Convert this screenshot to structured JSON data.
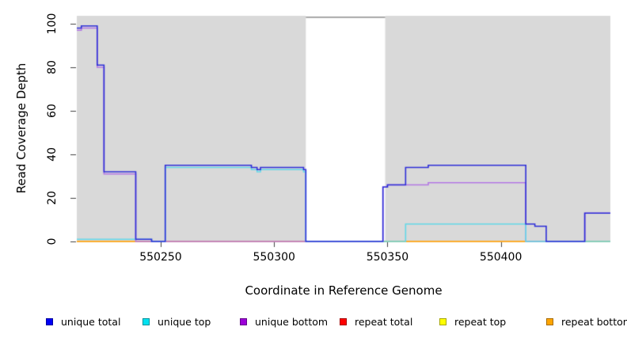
{
  "chart_data": {
    "type": "line",
    "subtype": "step-coverage-plot",
    "title": "",
    "xlabel": "Coordinate in Reference Genome",
    "ylabel": "Read Coverage Depth",
    "xlim": [
      550213,
      550448.3
    ],
    "ylim": [
      0,
      103.6
    ],
    "grid": false,
    "xticks": [
      {
        "value": 550250,
        "label": "550250"
      },
      {
        "value": 550300,
        "label": "550300"
      },
      {
        "value": 550350,
        "label": "550350"
      },
      {
        "value": 550400,
        "label": "550400"
      }
    ],
    "yticks": [
      {
        "value": 0,
        "label": "0"
      },
      {
        "value": 20,
        "label": "20"
      },
      {
        "value": 40,
        "label": "40"
      },
      {
        "value": 60,
        "label": "60"
      },
      {
        "value": 80,
        "label": "80"
      },
      {
        "value": 100,
        "label": "100"
      }
    ],
    "background_band": {
      "color": "#d9d9d9",
      "x0": 550213,
      "x1": 550448.3
    },
    "gap_region": {
      "x0": 550314,
      "x1": 550349,
      "color": "#ffffff",
      "top_line_value": 103,
      "top_line_color": "#8c8c8c"
    },
    "series": [
      {
        "name": "repeat total",
        "line_color": "#e8475a",
        "points": [
          [
            550213,
            0
          ],
          [
            550448.3,
            0
          ]
        ]
      },
      {
        "name": "repeat top",
        "line_color": "#f0f000",
        "points": [
          [
            550213,
            0
          ],
          [
            550448.3,
            0
          ]
        ]
      },
      {
        "name": "repeat bottom",
        "line_color": "#ffa033",
        "points": [
          [
            550213,
            0
          ],
          [
            550448.3,
            0
          ]
        ]
      },
      {
        "name": "unique bottom",
        "line_color": "#b379e4",
        "points": [
          [
            550213,
            97
          ],
          [
            550215,
            98
          ],
          [
            550222,
            80
          ],
          [
            550225,
            31
          ],
          [
            550239,
            0
          ],
          [
            550348,
            25
          ],
          [
            550350,
            26
          ],
          [
            550368,
            27
          ],
          [
            550411,
            0
          ],
          [
            550437,
            13
          ],
          [
            550448.3,
            13
          ]
        ]
      },
      {
        "name": "unique top",
        "line_color": "#63d8e8",
        "points": [
          [
            550213,
            1
          ],
          [
            550246,
            0
          ],
          [
            550252,
            34
          ],
          [
            550290,
            33
          ],
          [
            550292.5,
            32
          ],
          [
            550294,
            33
          ],
          [
            550313,
            32
          ],
          [
            550314,
            0
          ],
          [
            550358,
            8
          ],
          [
            550411,
            0
          ],
          [
            550448.3,
            0
          ]
        ]
      },
      {
        "name": "unique total",
        "line_color": "#2e2ed8",
        "points": [
          [
            550213,
            98
          ],
          [
            550215,
            99
          ],
          [
            550222,
            81
          ],
          [
            550225,
            32
          ],
          [
            550239,
            1
          ],
          [
            550246,
            0
          ],
          [
            550252,
            35
          ],
          [
            550290,
            34
          ],
          [
            550292.5,
            33
          ],
          [
            550294,
            34
          ],
          [
            550313,
            33
          ],
          [
            550314,
            0
          ],
          [
            550348,
            25
          ],
          [
            550350,
            26
          ],
          [
            550358,
            34
          ],
          [
            550368,
            35
          ],
          [
            550411,
            8
          ],
          [
            550415,
            7
          ],
          [
            550420,
            0
          ],
          [
            550437,
            13
          ],
          [
            550448.3,
            13
          ]
        ]
      }
    ],
    "legend": {
      "position": "bottom",
      "items": [
        {
          "label": "unique total",
          "swatch_color": "#0000f5"
        },
        {
          "label": "unique top",
          "swatch_color": "#00e1f0"
        },
        {
          "label": "unique bottom",
          "swatch_color": "#9c00d8"
        },
        {
          "label": "repeat total",
          "swatch_color": "#ff0000"
        },
        {
          "label": "repeat top",
          "swatch_color": "#ffff00"
        },
        {
          "label": "repeat bottom",
          "swatch_color": "#ffa500"
        }
      ]
    },
    "tick_color": "#404040",
    "text_color": "#000000"
  }
}
